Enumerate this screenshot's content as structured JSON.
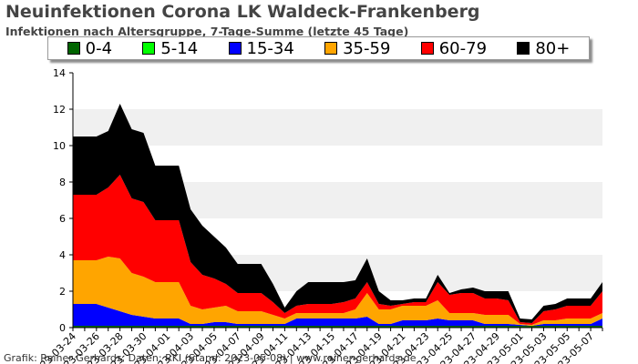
{
  "title": "Neuinfektionen Corona LK Waldeck-Frankenberg",
  "subtitle": "Infektionen nach Altersgruppe, 7-Tage-Summe (letzte 45 Tage)",
  "caption": "Grafik: Rainer Gerhards, Daten: RKI (Stand: 2023-05-08) | www.rainer-gerhards.de",
  "chart_data": {
    "type": "area",
    "stacked": true,
    "title": "Neuinfektionen Corona LK Waldeck-Frankenberg",
    "subtitle": "Infektionen nach Altersgruppe, 7-Tage-Summe (letzte 45 Tage)",
    "ylim": [
      0,
      14
    ],
    "yticks": [
      0,
      2,
      4,
      6,
      8,
      10,
      12,
      14
    ],
    "grid": "horizontal alternating bands",
    "legend_position": "top",
    "x": [
      "2023-03-24",
      "2023-03-25",
      "2023-03-26",
      "2023-03-27",
      "2023-03-28",
      "2023-03-29",
      "2023-03-30",
      "2023-03-31",
      "2023-04-01",
      "2023-04-02",
      "2023-04-03",
      "2023-04-04",
      "2023-04-05",
      "2023-04-06",
      "2023-04-07",
      "2023-04-08",
      "2023-04-09",
      "2023-04-10",
      "2023-04-11",
      "2023-04-12",
      "2023-04-13",
      "2023-04-14",
      "2023-04-15",
      "2023-04-16",
      "2023-04-17",
      "2023-04-18",
      "2023-04-19",
      "2023-04-20",
      "2023-04-21",
      "2023-04-22",
      "2023-04-23",
      "2023-04-24",
      "2023-04-25",
      "2023-04-26",
      "2023-04-27",
      "2023-04-28",
      "2023-04-29",
      "2023-04-30",
      "2023-05-01",
      "2023-05-02",
      "2023-05-03",
      "2023-05-04",
      "2023-05-05",
      "2023-05-06",
      "2023-05-07",
      "2023-05-08"
    ],
    "xtick_labels": [
      "2023-03-24",
      "2023-03-26",
      "2023-03-28",
      "2023-03-30",
      "2023-04-01",
      "2023-04-03",
      "2023-04-05",
      "2023-04-07",
      "2023-04-09",
      "2023-04-11",
      "2023-04-13",
      "2023-04-15",
      "2023-04-17",
      "2023-04-19",
      "2023-04-21",
      "2023-04-23",
      "2023-04-25",
      "2023-04-27",
      "2023-04-29",
      "2023-05-01",
      "2023-05-03",
      "2023-05-05",
      "2023-05-07"
    ],
    "series": [
      {
        "name": "0-4",
        "color": "#006400",
        "values": [
          0.1,
          0.1,
          0.1,
          0.1,
          0.1,
          0.1,
          0.1,
          0.1,
          0.1,
          0.1,
          0.1,
          0.1,
          0.1,
          0.1,
          0.1,
          0.1,
          0.1,
          0.1,
          0.1,
          0.1,
          0.1,
          0.1,
          0.1,
          0.1,
          0.1,
          0.1,
          0.1,
          0.1,
          0.1,
          0.1,
          0.1,
          0.1,
          0.1,
          0.1,
          0.1,
          0.1,
          0.1,
          0.1,
          0.1,
          0.1,
          0.1,
          0.1,
          0.1,
          0.1,
          0.1,
          0.1
        ]
      },
      {
        "name": "5-14",
        "color": "#00ff00",
        "values": [
          0,
          0,
          0,
          0,
          0,
          0,
          0,
          0,
          0,
          0,
          0,
          0,
          0,
          0,
          0,
          0,
          0,
          0,
          0,
          0,
          0,
          0,
          0,
          0,
          0,
          0,
          0,
          0,
          0,
          0,
          0,
          0,
          0,
          0,
          0,
          0,
          0,
          0,
          0,
          0,
          0,
          0,
          0,
          0,
          0,
          0
        ]
      },
      {
        "name": "15-34",
        "color": "#0000ff",
        "values": [
          1.2,
          1.2,
          1.2,
          1.0,
          0.8,
          0.6,
          0.5,
          0.4,
          0.4,
          0.4,
          0.1,
          0.1,
          0.2,
          0.2,
          0.1,
          0.1,
          0.1,
          0.1,
          0.1,
          0.4,
          0.4,
          0.4,
          0.4,
          0.4,
          0.4,
          0.5,
          0.1,
          0.1,
          0.3,
          0.3,
          0.3,
          0.4,
          0.3,
          0.3,
          0.3,
          0.1,
          0.1,
          0.1,
          0.05,
          0.0,
          0.1,
          0.1,
          0.1,
          0.1,
          0.1,
          0.4
        ]
      },
      {
        "name": "35-59",
        "color": "#ffa500",
        "values": [
          2.4,
          2.4,
          2.4,
          2.8,
          2.9,
          2.3,
          2.2,
          2.0,
          2.0,
          2.0,
          1.0,
          0.8,
          0.8,
          0.9,
          0.7,
          0.7,
          0.7,
          0.5,
          0.3,
          0.3,
          0.3,
          0.3,
          0.3,
          0.3,
          0.5,
          1.3,
          0.8,
          0.8,
          0.8,
          0.8,
          0.8,
          1.0,
          0.4,
          0.4,
          0.4,
          0.5,
          0.5,
          0.5,
          0.05,
          0.05,
          0.2,
          0.2,
          0.3,
          0.3,
          0.3,
          0.3
        ]
      },
      {
        "name": "60-79",
        "color": "#ff0000",
        "values": [
          3.6,
          3.6,
          3.6,
          3.8,
          4.6,
          4.1,
          4.1,
          3.4,
          3.4,
          3.4,
          2.4,
          1.9,
          1.6,
          1.2,
          1.0,
          1.0,
          1.0,
          0.7,
          0.3,
          0.4,
          0.5,
          0.5,
          0.5,
          0.6,
          0.6,
          0.6,
          0.3,
          0.2,
          0.1,
          0.2,
          0.2,
          1.0,
          1.0,
          1.1,
          1.1,
          0.9,
          0.9,
          0.8,
          0.1,
          0.1,
          0.5,
          0.6,
          0.7,
          0.7,
          0.7,
          1.2
        ]
      },
      {
        "name": "80+",
        "color": "#000000",
        "values": [
          3.2,
          3.2,
          3.2,
          3.1,
          3.9,
          3.8,
          3.8,
          3.0,
          3.0,
          3.0,
          2.9,
          2.7,
          2.3,
          2.0,
          1.6,
          1.6,
          1.6,
          1.0,
          0.3,
          0.8,
          1.2,
          1.2,
          1.2,
          1.1,
          1.0,
          1.3,
          0.7,
          0.3,
          0.2,
          0.2,
          0.2,
          0.4,
          0.1,
          0.2,
          0.3,
          0.4,
          0.4,
          0.5,
          0.2,
          0.2,
          0.3,
          0.3,
          0.4,
          0.4,
          0.4,
          0.5
        ]
      }
    ]
  }
}
